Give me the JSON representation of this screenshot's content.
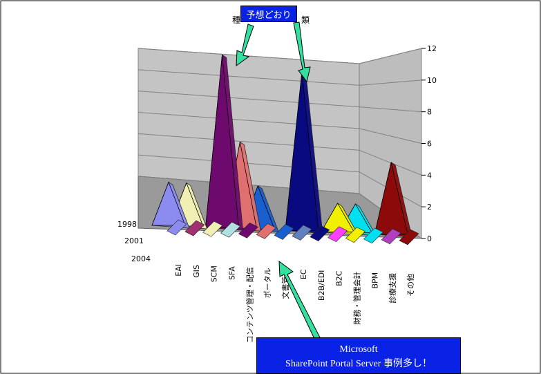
{
  "chart_data": {
    "type": "area",
    "title_fragments": [
      "種",
      "類"
    ],
    "series_labels": [
      "1998",
      "2001",
      "2004"
    ],
    "categories": [
      "EAI",
      "GIS",
      "SCM",
      "SFA",
      "コンテンツ管理・配信",
      "ポータル",
      "文書管理",
      "EC",
      "B2B/EDI",
      "B2C",
      "財務・管理会計",
      "BPM",
      "診療支援",
      "その他"
    ],
    "zlim": [
      0,
      12
    ],
    "z_ticks": [
      0,
      2,
      4,
      6,
      8,
      10,
      12
    ],
    "grid": true,
    "peaks": [
      {
        "category": "EAI",
        "value": 3,
        "color": "#8c8cf0"
      },
      {
        "category": "GIS",
        "value": 3,
        "color": "#f0f0b4"
      },
      {
        "category": "SFA",
        "value": 12,
        "color": "#6e0a6e"
      },
      {
        "category": "コンテンツ管理・配信",
        "value": 6,
        "color": "#e07070"
      },
      {
        "category": "ポータル",
        "value": 3,
        "color": "#1a5fd0"
      },
      {
        "category": "EC",
        "value": 11,
        "color": "#0a0a80"
      },
      {
        "category": "B2C",
        "value": 2,
        "color": "#f0f000"
      },
      {
        "category": "財務・管理会計",
        "value": 2,
        "color": "#00e0f0"
      },
      {
        "category": "診療支援",
        "value": 5,
        "color": "#8c0a0a"
      }
    ]
  },
  "annotations": {
    "top_label": "予想どおり",
    "bottom_line1": "Microsoft",
    "bottom_line2": "SharePoint Portal Server 事例多し！"
  }
}
